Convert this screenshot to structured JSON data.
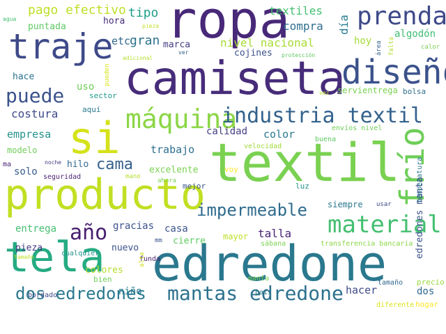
{
  "word_cloud": {
    "words": [
      {
        "text": "ropa",
        "color": "#482878"
      },
      {
        "text": "camiseta",
        "color": "#472c7a"
      },
      {
        "text": "textil",
        "color": "#7ad151"
      },
      {
        "text": "producto",
        "color": "#c2df23"
      },
      {
        "text": "edredone",
        "color": "#2a788e"
      },
      {
        "text": "traje",
        "color": "#3e4a89"
      },
      {
        "text": "diseño",
        "color": "#3b528b"
      },
      {
        "text": "prenda",
        "color": "#3e4a89"
      },
      {
        "text": "si",
        "color": "#d5e21a"
      },
      {
        "text": "máquina",
        "color": "#8bd646"
      },
      {
        "text": "tela",
        "color": "#25ab82"
      },
      {
        "text": "industria textil",
        "color": "#33628d"
      },
      {
        "text": "frío",
        "color": "#6ece58"
      },
      {
        "text": "material",
        "color": "#44bf70"
      },
      {
        "text": "impermeable",
        "color": "#2f6c8e"
      },
      {
        "text": "puede",
        "color": "#3b528b"
      },
      {
        "text": "mantas edredone",
        "color": "#2c718e"
      },
      {
        "text": "dos edredones",
        "color": "#2a788e"
      },
      {
        "text": "año",
        "color": "#481f70"
      },
      {
        "text": "cama",
        "color": "#355f8d"
      },
      {
        "text": "textiles",
        "color": "#44bf70"
      },
      {
        "text": "pago efectivo",
        "color": "#bddf26"
      },
      {
        "text": "tipo",
        "color": "#1f9e89"
      },
      {
        "text": "compra",
        "color": "#2e6f8e"
      },
      {
        "text": "nivel nacional",
        "color": "#a8db34"
      },
      {
        "text": "algodón",
        "color": "#3fbc73"
      },
      {
        "text": "hoy",
        "color": "#a5db36"
      },
      {
        "text": "día",
        "color": "#287c8e"
      },
      {
        "text": "puntada",
        "color": "#5ec962"
      },
      {
        "text": "hora",
        "color": "#472d7b"
      },
      {
        "text": "gran",
        "color": "#2c728e"
      },
      {
        "text": "marca",
        "color": "#433e85"
      },
      {
        "text": "etc",
        "color": "#31688e"
      },
      {
        "text": "cojines",
        "color": "#3b528b"
      },
      {
        "text": "hace",
        "color": "#2c728e"
      },
      {
        "text": "uso",
        "color": "#6ece58"
      },
      {
        "text": "sector",
        "color": "#1f9a8a"
      },
      {
        "text": "aquí",
        "color": "#2a788e"
      },
      {
        "text": "servientrega",
        "color": "#7ad151"
      },
      {
        "text": "bolsa",
        "color": "#2e6f8e"
      },
      {
        "text": "costura",
        "color": "#3e4a89"
      },
      {
        "text": "calidad",
        "color": "#433e85"
      },
      {
        "text": "color",
        "color": "#2a788e"
      },
      {
        "text": "empresa",
        "color": "#21918c"
      },
      {
        "text": "trabajo",
        "color": "#2e6f8e"
      },
      {
        "text": "modelo",
        "color": "#6ece58"
      },
      {
        "text": "excelente",
        "color": "#7ad151"
      },
      {
        "text": "solo",
        "color": "#365c8d"
      },
      {
        "text": "hilo",
        "color": "#31688e"
      },
      {
        "text": "voy",
        "color": "#fde725"
      },
      {
        "text": "luz",
        "color": "#21918c"
      },
      {
        "text": "seguridad",
        "color": "#481f70"
      },
      {
        "text": "mejor",
        "color": "#3b528b"
      },
      {
        "text": "entrega",
        "color": "#44bf70"
      },
      {
        "text": "gracias",
        "color": "#3b528b"
      },
      {
        "text": "casa",
        "color": "#3b528b"
      },
      {
        "text": "talla",
        "color": "#482475"
      },
      {
        "text": "siempre",
        "color": "#2a788e"
      },
      {
        "text": "pieza",
        "color": "#453781"
      },
      {
        "text": "nuevo",
        "color": "#3b528b"
      },
      {
        "text": "cierre",
        "color": "#5ec962"
      },
      {
        "text": "mayor",
        "color": "#bddf26"
      },
      {
        "text": "hacer",
        "color": "#3e4a89"
      },
      {
        "text": "colores",
        "color": "#b5de2b"
      },
      {
        "text": "niño",
        "color": "#287c8e"
      },
      {
        "text": "bien",
        "color": "#6ece58"
      },
      {
        "text": "dos",
        "color": "#31688e"
      },
      {
        "text": "precio",
        "color": "#9bd93c"
      },
      {
        "text": "bordado",
        "color": "#3e4a89"
      },
      {
        "text": "edredones manta",
        "color": "#3b528b"
      },
      {
        "text": "temperatura",
        "color": "#2c728e"
      },
      {
        "text": "velocidad",
        "color": "#a0da39"
      },
      {
        "text": "envíos nivel",
        "color": "#6ece58"
      },
      {
        "text": "buena",
        "color": "#5ec962"
      },
      {
        "text": "transferencia bancaria",
        "color": "#8bd646"
      },
      {
        "text": "sábana",
        "color": "#7ad151"
      },
      {
        "text": "cualquier",
        "color": "#21918c"
      },
      {
        "text": "funda",
        "color": "#481f70"
      },
      {
        "text": "manta",
        "color": "#7ad151"
      },
      {
        "text": "país",
        "color": "#2a788e"
      },
      {
        "text": "tamaño",
        "color": "#31688e"
      },
      {
        "text": "hogar",
        "color": "#fde725"
      },
      {
        "text": "diferente",
        "color": "#d8e219"
      },
      {
        "text": "usar",
        "color": "#3e4a89"
      },
      {
        "text": "mm",
        "color": "#3b528b"
      },
      {
        "text": "ahora",
        "color": "#7ad151"
      },
      {
        "text": "mano",
        "color": "#b5de2b"
      },
      {
        "text": "noche",
        "color": "#453781"
      },
      {
        "text": "ma",
        "color": "#482475"
      },
      {
        "text": "agua",
        "color": "#44bf70"
      },
      {
        "text": "pieza",
        "color": "#bddf26"
      },
      {
        "text": "adicional",
        "color": "#b5de2b"
      },
      {
        "text": "ver",
        "color": "#355f8d"
      },
      {
        "text": "protección",
        "color": "#5ec962"
      },
      {
        "text": "pueden",
        "color": "#d8e219"
      },
      {
        "text": "área",
        "color": "#355f8d"
      },
      {
        "text": "falta",
        "color": "#b5de2b"
      },
      {
        "text": "calor",
        "color": "#7ad151"
      },
      {
        "text": "vez",
        "color": "#b5de2b"
      },
      {
        "text": "alta",
        "color": "#cde11d"
      },
      {
        "text": "tamaño",
        "color": "#c2df23"
      }
    ]
  }
}
